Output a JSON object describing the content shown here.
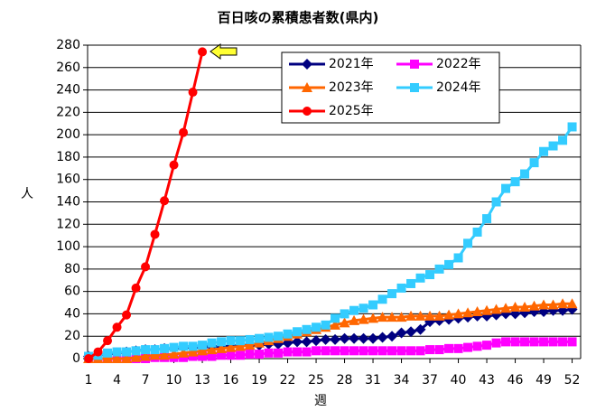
{
  "chart_data": {
    "type": "line",
    "title": "百日咳の累積患者数(県内)",
    "y_label": "人",
    "x_label": "週",
    "x": [
      1,
      2,
      3,
      4,
      5,
      6,
      7,
      8,
      9,
      10,
      11,
      12,
      13,
      14,
      15,
      16,
      17,
      18,
      19,
      20,
      21,
      22,
      23,
      24,
      25,
      26,
      27,
      28,
      29,
      30,
      31,
      32,
      33,
      34,
      35,
      36,
      37,
      38,
      39,
      40,
      41,
      42,
      43,
      44,
      45,
      46,
      47,
      48,
      49,
      50,
      51,
      52
    ],
    "xlim": [
      0.9,
      52.9
    ],
    "xticks": [
      1,
      4,
      7,
      10,
      13,
      16,
      19,
      22,
      25,
      28,
      31,
      34,
      37,
      40,
      43,
      46,
      49,
      52
    ],
    "ylim": [
      0,
      280
    ],
    "yticks": [
      0,
      20,
      40,
      60,
      80,
      100,
      120,
      140,
      160,
      180,
      200,
      220,
      240,
      260,
      280
    ],
    "grid": true,
    "legend": "top-right",
    "series": [
      {
        "name": "2021年",
        "color": "#000080",
        "marker": "diamond",
        "values": [
          2,
          3,
          4,
          5,
          6,
          7,
          8,
          8,
          9,
          9,
          10,
          10,
          10,
          11,
          11,
          11,
          12,
          12,
          12,
          13,
          13,
          14,
          15,
          15,
          16,
          17,
          17,
          18,
          18,
          18,
          18,
          19,
          20,
          23,
          24,
          26,
          33,
          34,
          35,
          36,
          37,
          38,
          38,
          39,
          40,
          40,
          41,
          42,
          42,
          43,
          43,
          44
        ]
      },
      {
        "name": "2022年",
        "color": "#ff00ff",
        "marker": "square",
        "values": [
          0,
          0,
          0,
          0,
          0,
          0,
          0,
          1,
          1,
          1,
          1,
          2,
          2,
          2,
          3,
          3,
          3,
          4,
          4,
          5,
          5,
          6,
          6,
          6,
          7,
          7,
          7,
          7,
          7,
          7,
          7,
          7,
          7,
          7,
          7,
          7,
          8,
          8,
          9,
          9,
          10,
          11,
          12,
          14,
          15,
          15,
          15,
          15,
          15,
          15,
          15,
          15
        ]
      },
      {
        "name": "2023年",
        "color": "#ff6600",
        "marker": "triangle",
        "values": [
          0,
          0,
          0,
          0,
          0,
          1,
          2,
          3,
          3,
          4,
          5,
          6,
          7,
          8,
          9,
          10,
          11,
          12,
          14,
          16,
          18,
          20,
          22,
          24,
          26,
          28,
          30,
          32,
          34,
          35,
          36,
          37,
          37,
          37,
          38,
          38,
          38,
          38,
          39,
          40,
          41,
          42,
          43,
          44,
          45,
          46,
          46,
          47,
          48,
          48,
          49,
          49
        ]
      },
      {
        "name": "2024年",
        "color": "#33ccff",
        "marker": "square",
        "values": [
          2,
          3,
          5,
          6,
          6,
          7,
          8,
          8,
          9,
          10,
          11,
          11,
          12,
          14,
          15,
          16,
          16,
          17,
          18,
          19,
          20,
          22,
          24,
          26,
          28,
          30,
          36,
          40,
          43,
          45,
          48,
          53,
          58,
          63,
          67,
          72,
          75,
          80,
          84,
          90,
          103,
          113,
          125,
          140,
          152,
          158,
          165,
          175,
          185,
          190,
          195,
          207
        ]
      },
      {
        "name": "2025年",
        "color": "#ff0000",
        "marker": "circle",
        "values": [
          0,
          6,
          16,
          28,
          39,
          63,
          82,
          111,
          141,
          173,
          202,
          238,
          274,
          null,
          null,
          null,
          null,
          null,
          null,
          null,
          null,
          null,
          null,
          null,
          null,
          null,
          null,
          null,
          null,
          null,
          null,
          null,
          null,
          null,
          null,
          null,
          null,
          null,
          null,
          null,
          null,
          null,
          null,
          null,
          null,
          null,
          null,
          null,
          null,
          null,
          null,
          null
        ]
      }
    ]
  }
}
